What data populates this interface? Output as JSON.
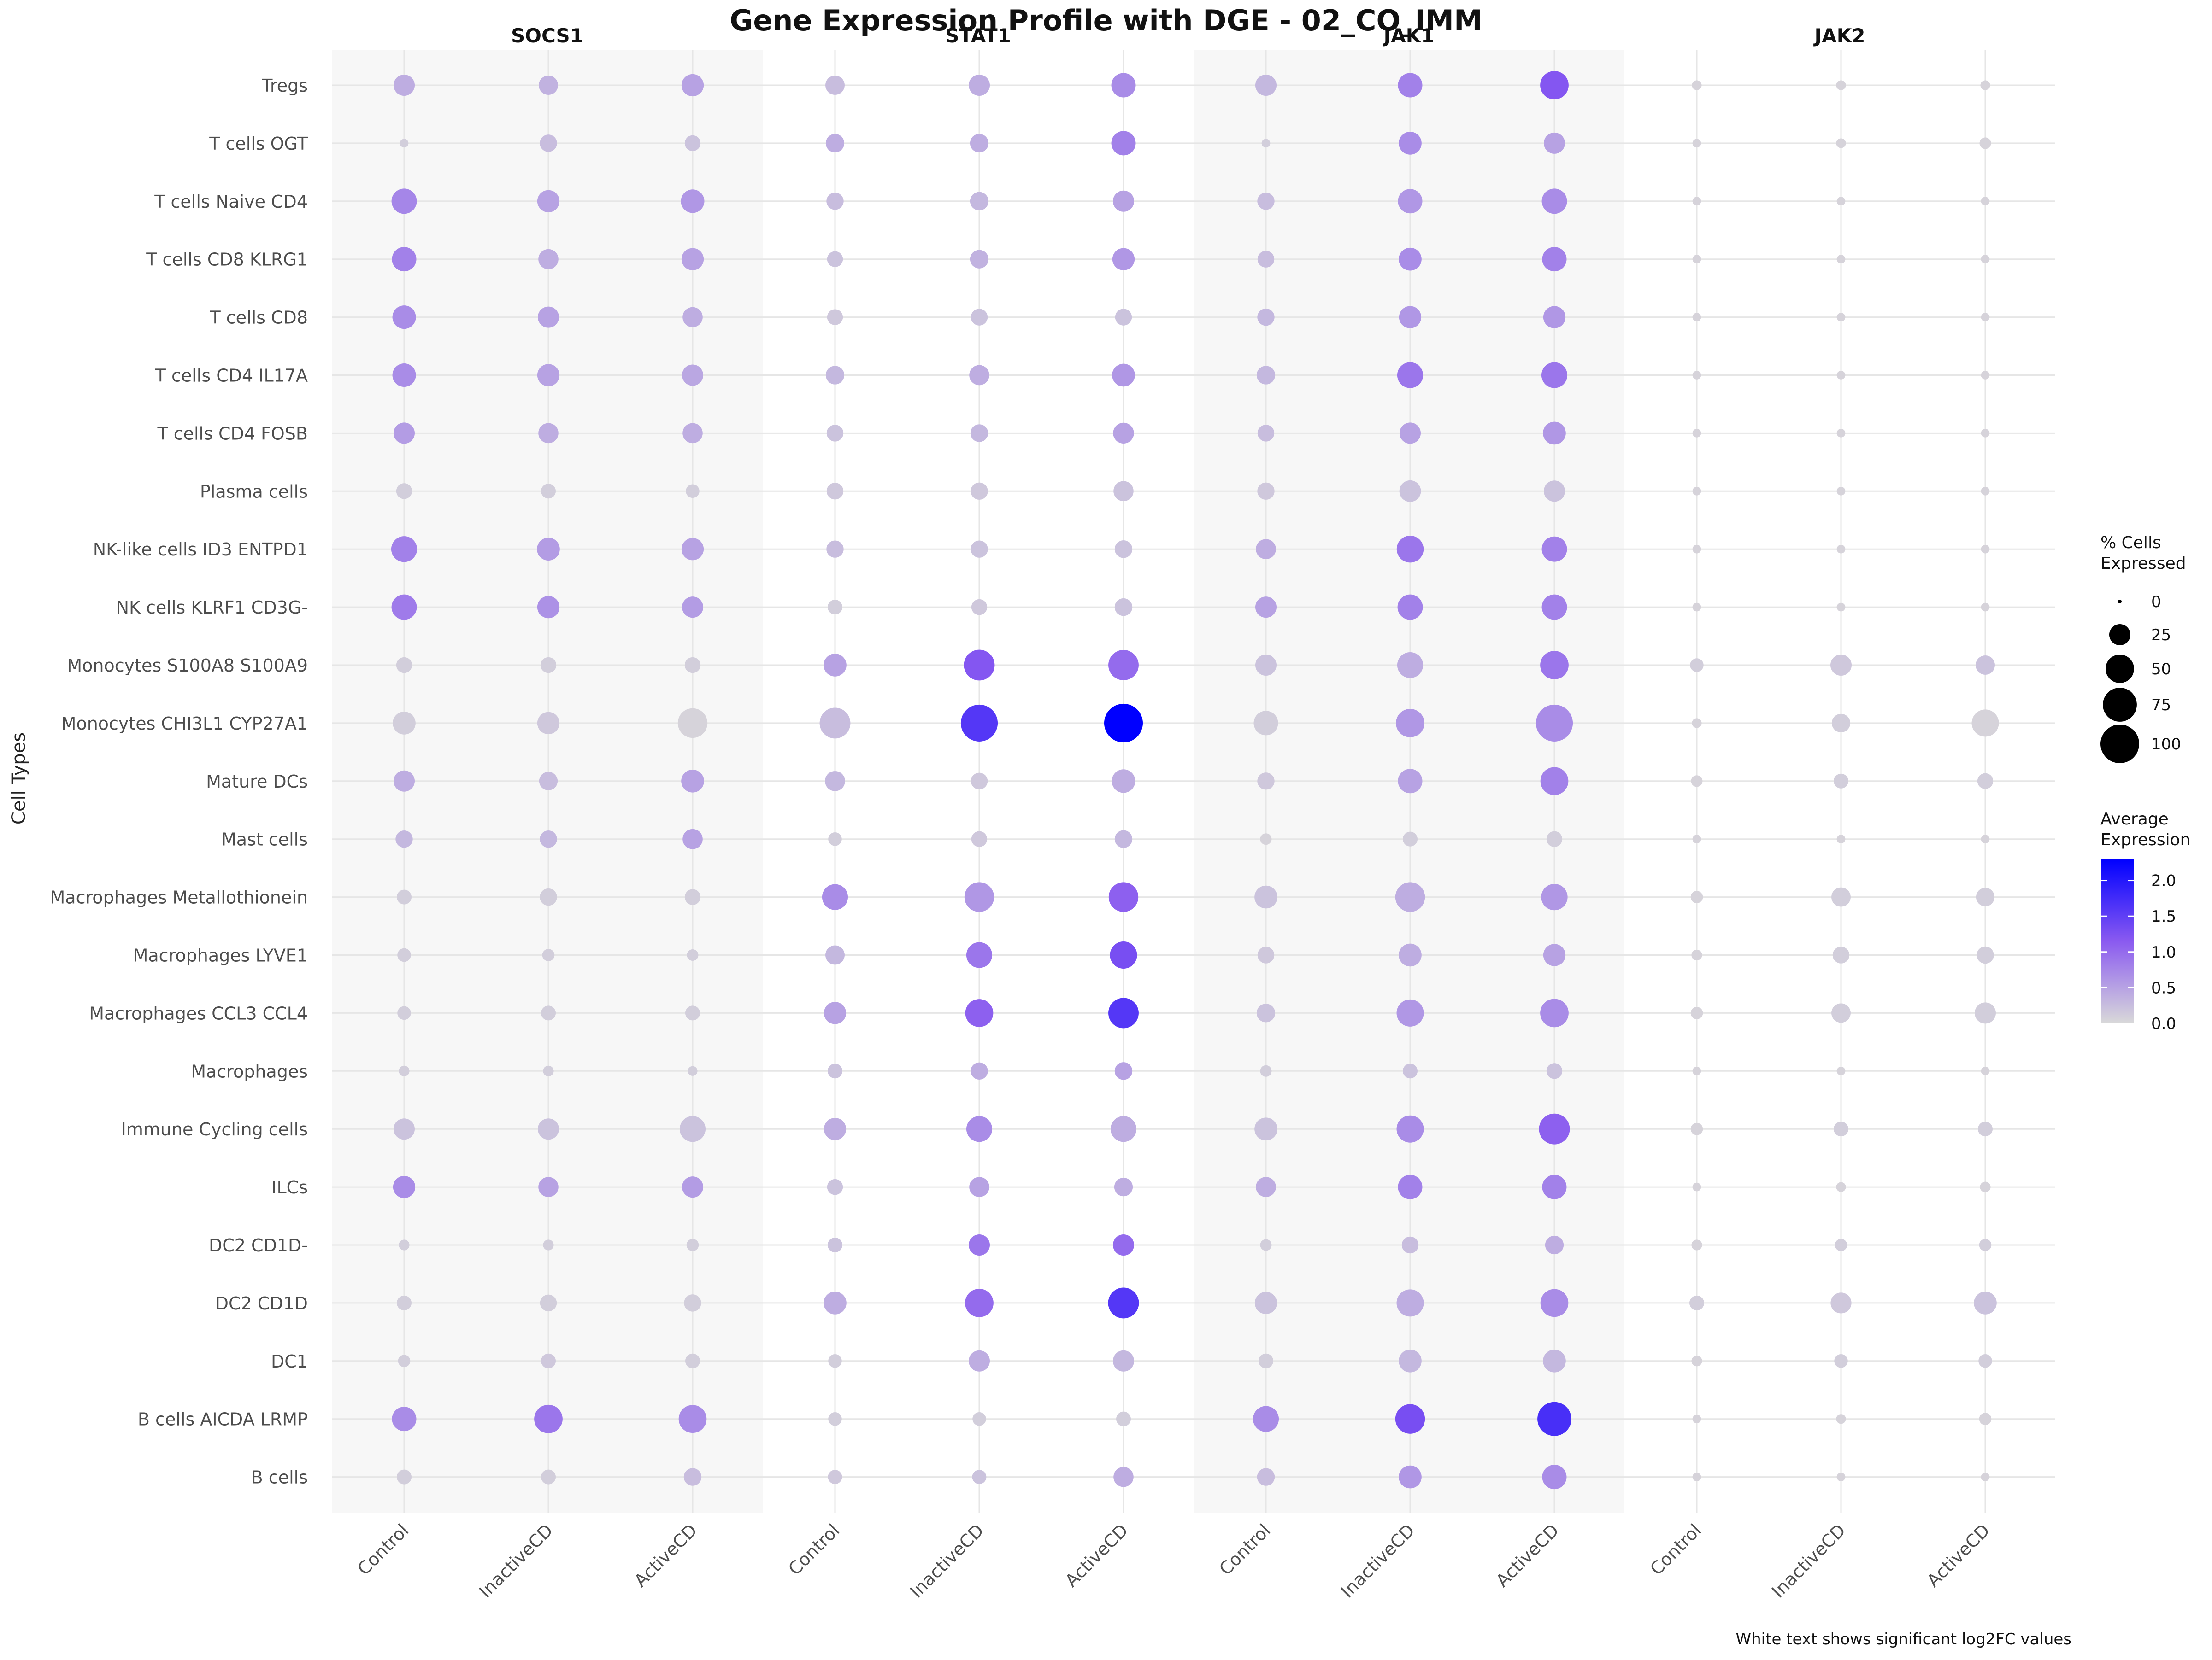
{
  "chart_data": {
    "type": "dot",
    "title": "Gene Expression Profile with DGE - 02_CO_IMM",
    "ylabel": "Cell Types",
    "caption": "White text shows significant log2FC values",
    "genes": [
      "SOCS1",
      "STAT1",
      "JAK1",
      "JAK2"
    ],
    "conditions": [
      "Control",
      "InactiveCD",
      "ActiveCD"
    ],
    "cell_types": [
      "Tregs",
      "T cells OGT",
      "T cells Naive CD4",
      "T cells CD8 KLRG1",
      "T cells CD8",
      "T cells CD4 IL17A",
      "T cells CD4 FOSB",
      "Plasma cells",
      "NK-like cells ID3 ENTPD1",
      "NK cells KLRF1 CD3G-",
      "Monocytes S100A8 S100A9",
      "Monocytes CHI3L1 CYP27A1",
      "Mature DCs",
      "Mast cells",
      "Macrophages Metallothionein",
      "Macrophages LYVE1",
      "Macrophages CCL3 CCL4",
      "Macrophages",
      "Immune Cycling cells",
      "ILCs",
      "DC2 CD1D-",
      "DC2 CD1D",
      "DC1",
      "B cells AICDA LRMP",
      "B cells"
    ],
    "pct_expressed": [
      [
        [
          25,
          20,
          28
        ],
        [
          20,
          25,
          35
        ],
        [
          25,
          35,
          50
        ],
        [
          3,
          3,
          3
        ]
      ],
      [
        [
          2,
          15,
          12
        ],
        [
          18,
          18,
          35
        ],
        [
          2,
          30,
          25
        ],
        [
          2,
          3,
          5
        ]
      ],
      [
        [
          38,
          28,
          32
        ],
        [
          15,
          18,
          25
        ],
        [
          15,
          35,
          38
        ],
        [
          2,
          2,
          2
        ]
      ],
      [
        [
          35,
          22,
          28
        ],
        [
          12,
          18,
          28
        ],
        [
          14,
          30,
          35
        ],
        [
          2,
          2,
          2
        ]
      ],
      [
        [
          32,
          25,
          22
        ],
        [
          12,
          14,
          14
        ],
        [
          15,
          28,
          28
        ],
        [
          2,
          2,
          2
        ]
      ],
      [
        [
          32,
          28,
          25
        ],
        [
          18,
          22,
          30
        ],
        [
          18,
          40,
          40
        ],
        [
          2,
          2,
          2
        ]
      ],
      [
        [
          25,
          22,
          22
        ],
        [
          14,
          16,
          24
        ],
        [
          14,
          25,
          30
        ],
        [
          2,
          2,
          2
        ]
      ],
      [
        [
          12,
          10,
          8
        ],
        [
          14,
          15,
          22
        ],
        [
          15,
          26,
          25
        ],
        [
          2,
          2,
          2
        ]
      ],
      [
        [
          40,
          30,
          28
        ],
        [
          15,
          15,
          16
        ],
        [
          22,
          44,
          38
        ],
        [
          2,
          2,
          2
        ]
      ],
      [
        [
          38,
          28,
          25
        ],
        [
          10,
          12,
          16
        ],
        [
          25,
          38,
          38
        ],
        [
          2,
          2,
          2
        ]
      ],
      [
        [
          12,
          12,
          12
        ],
        [
          30,
          60,
          58
        ],
        [
          25,
          40,
          50
        ],
        [
          8,
          25,
          20
        ]
      ],
      [
        [
          30,
          28,
          55
        ],
        [
          60,
          90,
          100
        ],
        [
          35,
          50,
          90
        ],
        [
          3,
          18,
          45
        ]
      ],
      [
        [
          25,
          18,
          30
        ],
        [
          22,
          14,
          32
        ],
        [
          15,
          35,
          48
        ],
        [
          5,
          10,
          12
        ]
      ],
      [
        [
          15,
          15,
          22
        ],
        [
          8,
          12,
          16
        ],
        [
          5,
          10,
          12
        ],
        [
          2,
          2,
          2
        ]
      ],
      [
        [
          10,
          15,
          12
        ],
        [
          40,
          55,
          55
        ],
        [
          30,
          55,
          42
        ],
        [
          6,
          20,
          18
        ]
      ],
      [
        [
          8,
          6,
          5
        ],
        [
          20,
          40,
          45
        ],
        [
          14,
          30,
          28
        ],
        [
          4,
          14,
          15
        ]
      ],
      [
        [
          8,
          10,
          10
        ],
        [
          28,
          48,
          58
        ],
        [
          18,
          45,
          50
        ],
        [
          6,
          20,
          25
        ]
      ],
      [
        [
          4,
          4,
          3
        ],
        [
          10,
          15,
          16
        ],
        [
          5,
          10,
          12
        ],
        [
          2,
          2,
          2
        ]
      ],
      [
        [
          25,
          25,
          40
        ],
        [
          28,
          40,
          40
        ],
        [
          30,
          45,
          60
        ],
        [
          6,
          10,
          10
        ]
      ],
      [
        [
          28,
          22,
          25
        ],
        [
          12,
          22,
          18
        ],
        [
          22,
          35,
          35
        ],
        [
          2,
          3,
          4
        ]
      ],
      [
        [
          4,
          4,
          6
        ],
        [
          10,
          25,
          25
        ],
        [
          5,
          14,
          18
        ],
        [
          4,
          6,
          6
        ]
      ],
      [
        [
          10,
          14,
          15
        ],
        [
          30,
          50,
          60
        ],
        [
          28,
          45,
          48
        ],
        [
          10,
          24,
          30
        ]
      ],
      [
        [
          6,
          10,
          10
        ],
        [
          8,
          25,
          25
        ],
        [
          10,
          30,
          30
        ],
        [
          4,
          8,
          8
        ]
      ],
      [
        [
          35,
          50,
          48
        ],
        [
          8,
          8,
          10
        ],
        [
          40,
          55,
          75
        ],
        [
          2,
          3,
          6
        ]
      ],
      [
        [
          10,
          10,
          16
        ],
        [
          9,
          9,
          22
        ],
        [
          16,
          30,
          35
        ],
        [
          2,
          2,
          2
        ]
      ]
    ],
    "avg_expression": [
      [
        [
          0.4,
          0.35,
          0.5
        ],
        [
          0.25,
          0.4,
          0.7
        ],
        [
          0.3,
          0.8,
          1.2
        ],
        [
          0.05,
          0.05,
          0.05
        ]
      ],
      [
        [
          0.1,
          0.25,
          0.2
        ],
        [
          0.4,
          0.4,
          0.8
        ],
        [
          0.1,
          0.7,
          0.5
        ],
        [
          0.05,
          0.05,
          0.05
        ]
      ],
      [
        [
          0.75,
          0.5,
          0.6
        ],
        [
          0.25,
          0.3,
          0.5
        ],
        [
          0.25,
          0.6,
          0.7
        ],
        [
          0.05,
          0.05,
          0.05
        ]
      ],
      [
        [
          0.8,
          0.4,
          0.5
        ],
        [
          0.2,
          0.35,
          0.6
        ],
        [
          0.25,
          0.7,
          0.8
        ],
        [
          0.05,
          0.05,
          0.05
        ]
      ],
      [
        [
          0.7,
          0.5,
          0.4
        ],
        [
          0.15,
          0.2,
          0.2
        ],
        [
          0.3,
          0.6,
          0.6
        ],
        [
          0.05,
          0.05,
          0.05
        ]
      ],
      [
        [
          0.7,
          0.5,
          0.45
        ],
        [
          0.3,
          0.4,
          0.6
        ],
        [
          0.3,
          0.9,
          0.9
        ],
        [
          0.05,
          0.05,
          0.05
        ]
      ],
      [
        [
          0.55,
          0.4,
          0.4
        ],
        [
          0.2,
          0.3,
          0.5
        ],
        [
          0.25,
          0.5,
          0.6
        ],
        [
          0.05,
          0.05,
          0.05
        ]
      ],
      [
        [
          0.1,
          0.1,
          0.1
        ],
        [
          0.15,
          0.15,
          0.2
        ],
        [
          0.15,
          0.2,
          0.2
        ],
        [
          0.05,
          0.05,
          0.05
        ]
      ],
      [
        [
          0.8,
          0.55,
          0.5
        ],
        [
          0.25,
          0.2,
          0.2
        ],
        [
          0.4,
          0.9,
          0.8
        ],
        [
          0.05,
          0.05,
          0.05
        ]
      ],
      [
        [
          0.85,
          0.65,
          0.55
        ],
        [
          0.1,
          0.15,
          0.2
        ],
        [
          0.5,
          0.8,
          0.8
        ],
        [
          0.05,
          0.05,
          0.05
        ]
      ],
      [
        [
          0.1,
          0.1,
          0.1
        ],
        [
          0.5,
          1.2,
          1.0
        ],
        [
          0.2,
          0.4,
          0.9
        ],
        [
          0.1,
          0.15,
          0.2
        ]
      ],
      [
        [
          0.1,
          0.15,
          0.05
        ],
        [
          0.25,
          1.6,
          2.3
        ],
        [
          0.1,
          0.6,
          0.7
        ],
        [
          0.05,
          0.1,
          0.05
        ]
      ],
      [
        [
          0.4,
          0.25,
          0.5
        ],
        [
          0.3,
          0.15,
          0.4
        ],
        [
          0.15,
          0.5,
          0.8
        ],
        [
          0.05,
          0.1,
          0.1
        ]
      ],
      [
        [
          0.3,
          0.3,
          0.5
        ],
        [
          0.1,
          0.15,
          0.3
        ],
        [
          0.05,
          0.1,
          0.1
        ],
        [
          0.05,
          0.05,
          0.05
        ]
      ],
      [
        [
          0.1,
          0.1,
          0.1
        ],
        [
          0.7,
          0.6,
          1.1
        ],
        [
          0.2,
          0.4,
          0.6
        ],
        [
          0.05,
          0.1,
          0.1
        ]
      ],
      [
        [
          0.1,
          0.1,
          0.1
        ],
        [
          0.3,
          0.9,
          1.3
        ],
        [
          0.15,
          0.4,
          0.5
        ],
        [
          0.05,
          0.1,
          0.1
        ]
      ],
      [
        [
          0.1,
          0.1,
          0.1
        ],
        [
          0.5,
          1.1,
          1.6
        ],
        [
          0.2,
          0.6,
          0.7
        ],
        [
          0.05,
          0.1,
          0.1
        ]
      ],
      [
        [
          0.1,
          0.1,
          0.1
        ],
        [
          0.2,
          0.4,
          0.5
        ],
        [
          0.1,
          0.2,
          0.2
        ],
        [
          0.05,
          0.05,
          0.05
        ]
      ],
      [
        [
          0.2,
          0.2,
          0.2
        ],
        [
          0.4,
          0.7,
          0.4
        ],
        [
          0.2,
          0.7,
          1.1
        ],
        [
          0.05,
          0.1,
          0.1
        ]
      ],
      [
        [
          0.7,
          0.5,
          0.55
        ],
        [
          0.2,
          0.5,
          0.4
        ],
        [
          0.4,
          0.8,
          0.8
        ],
        [
          0.05,
          0.05,
          0.05
        ]
      ],
      [
        [
          0.1,
          0.1,
          0.1
        ],
        [
          0.2,
          0.9,
          1.0
        ],
        [
          0.1,
          0.25,
          0.4
        ],
        [
          0.05,
          0.1,
          0.1
        ]
      ],
      [
        [
          0.1,
          0.1,
          0.1
        ],
        [
          0.4,
          1.0,
          1.6
        ],
        [
          0.2,
          0.4,
          0.7
        ],
        [
          0.1,
          0.15,
          0.2
        ]
      ],
      [
        [
          0.1,
          0.15,
          0.1
        ],
        [
          0.1,
          0.4,
          0.3
        ],
        [
          0.1,
          0.3,
          0.3
        ],
        [
          0.05,
          0.1,
          0.1
        ]
      ],
      [
        [
          0.7,
          0.9,
          0.7
        ],
        [
          0.1,
          0.1,
          0.1
        ],
        [
          0.7,
          1.3,
          1.7
        ],
        [
          0.05,
          0.05,
          0.05
        ]
      ],
      [
        [
          0.1,
          0.1,
          0.25
        ],
        [
          0.15,
          0.2,
          0.4
        ],
        [
          0.25,
          0.6,
          0.7
        ],
        [
          0.05,
          0.05,
          0.05
        ]
      ]
    ],
    "size_legend": {
      "title_lines": [
        "% Cells",
        "Expressed"
      ],
      "values": [
        0,
        25,
        50,
        75,
        100
      ]
    },
    "color_legend": {
      "title_lines": [
        "Average",
        "Expression"
      ],
      "ticks": [
        0.0,
        0.5,
        1.0,
        1.5,
        2.0
      ],
      "tick_labels": [
        "0.0",
        "0.5",
        "1.0",
        "1.5",
        "2.0"
      ],
      "range": [
        0,
        2.3
      ],
      "low_color": "#d9d9d9",
      "high_color": "#0000ff"
    },
    "panel_shading": "alternating light grey",
    "grid": true
  }
}
